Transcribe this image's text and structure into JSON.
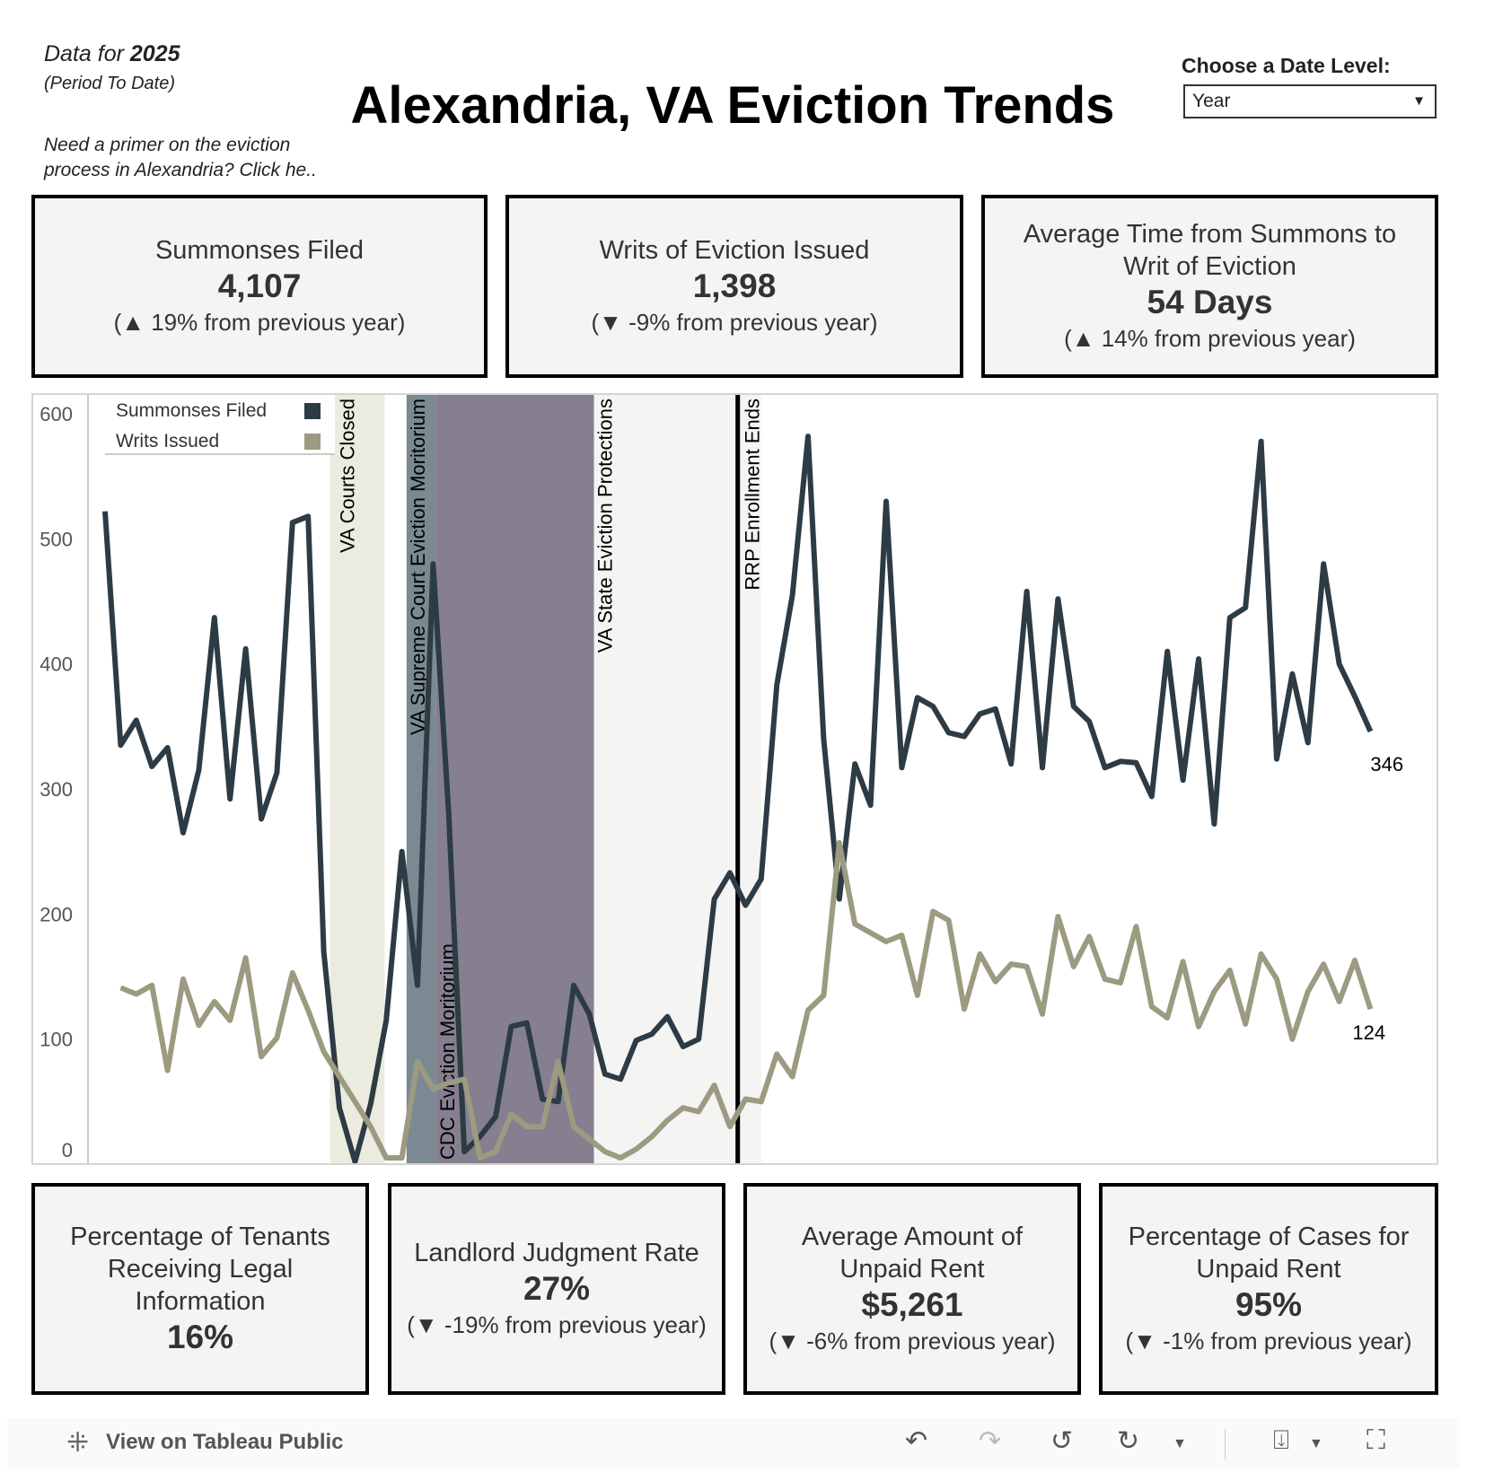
{
  "header": {
    "data_for": "Data for ",
    "year": "2025",
    "period": "(Period To Date)",
    "primer": "Need a primer on the eviction",
    "primer2": "process in Alexandria? Click he..",
    "title": "Alexandria, VA Eviction Trends"
  },
  "date_level": {
    "label": "Choose a Date Level:",
    "value": "Year"
  },
  "kpis_top": [
    {
      "label": "Summonses Filed",
      "value": "4,107",
      "change": "(▲ 19% from previous year)"
    },
    {
      "label": "Writs of Eviction Issued",
      "value": "1,398",
      "change": "(▼ -9% from previous year)"
    },
    {
      "label": "Average Time from Summons to Writ of Eviction",
      "value": "54 Days",
      "change": "(▲ 14% from previous year)"
    }
  ],
  "kpis_bottom": [
    {
      "label": "Percentage of Tenants Receiving Legal Information",
      "value": "16%",
      "change": ""
    },
    {
      "label": "Landlord Judgment Rate",
      "value": "27%",
      "change": "(▼ -19% from previous year)"
    },
    {
      "label": "Average Amount of Unpaid Rent",
      "value": "$5,261",
      "change": "(▼ -6% from previous year)"
    },
    {
      "label": "Percentage of Cases for Unpaid Rent",
      "value": "95%",
      "change": "(▼ -1% from previous year)"
    }
  ],
  "chart_data": {
    "type": "line",
    "ylim": [
      0,
      600
    ],
    "yticks": [
      "0",
      "100",
      "200",
      "300",
      "400",
      "500",
      "600"
    ],
    "grid": false,
    "legend_position": "top-left",
    "series": [
      {
        "name": "Summonses Filed",
        "color": "#2d3b45",
        "end_label": "346",
        "values": [
          522,
          335,
          355,
          318,
          333,
          265,
          315,
          437,
          292,
          412,
          276,
          313,
          513,
          518,
          170,
          45,
          2,
          48,
          115,
          250,
          143,
          480,
          280,
          10,
          22,
          38,
          110,
          113,
          52,
          50,
          143,
          120,
          72,
          68,
          99,
          104,
          118,
          94,
          100,
          212,
          233,
          207,
          228,
          383,
          455,
          582,
          340,
          212,
          320,
          287,
          530,
          317,
          373,
          366,
          345,
          342,
          360,
          364,
          320,
          458,
          317,
          452,
          366,
          354,
          317,
          322,
          321,
          294,
          410,
          307,
          404,
          272,
          437,
          445,
          578,
          324,
          392,
          337,
          480,
          400,
          374,
          346
        ]
      },
      {
        "name": "Writs Issued",
        "color": "#9c9a80",
        "end_label": "124",
        "values": [
          null,
          141,
          136,
          143,
          75,
          148,
          111,
          130,
          115,
          165,
          86,
          101,
          153,
          123,
          90,
          70,
          50,
          30,
          5,
          5,
          82,
          60,
          65,
          68,
          5,
          10,
          40,
          30,
          30,
          82,
          30,
          20,
          10,
          5,
          12,
          22,
          35,
          45,
          42,
          63,
          30,
          52,
          50,
          88,
          70,
          123,
          135,
          257,
          192,
          185,
          178,
          183,
          135,
          202,
          195,
          124,
          168,
          146,
          160,
          158,
          120,
          198,
          158,
          182,
          148,
          145,
          190,
          126,
          117,
          162,
          110,
          138,
          155,
          112,
          168,
          148,
          100,
          138,
          160,
          130,
          163,
          124
        ]
      }
    ],
    "annotations": [
      {
        "label": "VA Courts Closed",
        "from": 14.4,
        "to": 17.9,
        "color": "#ebebdf"
      },
      {
        "label": "VA Supreme Court Eviction Moritorium",
        "from": 19.3,
        "to": 21.2,
        "color": "#7b8a92"
      },
      {
        "label": "CDC Eviction Moritorium",
        "from": 21.2,
        "to": 31.3,
        "color": "#857f8f"
      },
      {
        "label": "VA State Eviction Protections",
        "from": 31.3,
        "to": 42,
        "color": "#f4f4f2"
      },
      {
        "label": "RRP Enrollment Ends",
        "at": 40.5,
        "color": "#000000"
      }
    ]
  },
  "toolbar": {
    "view_label": "View on Tableau Public"
  }
}
